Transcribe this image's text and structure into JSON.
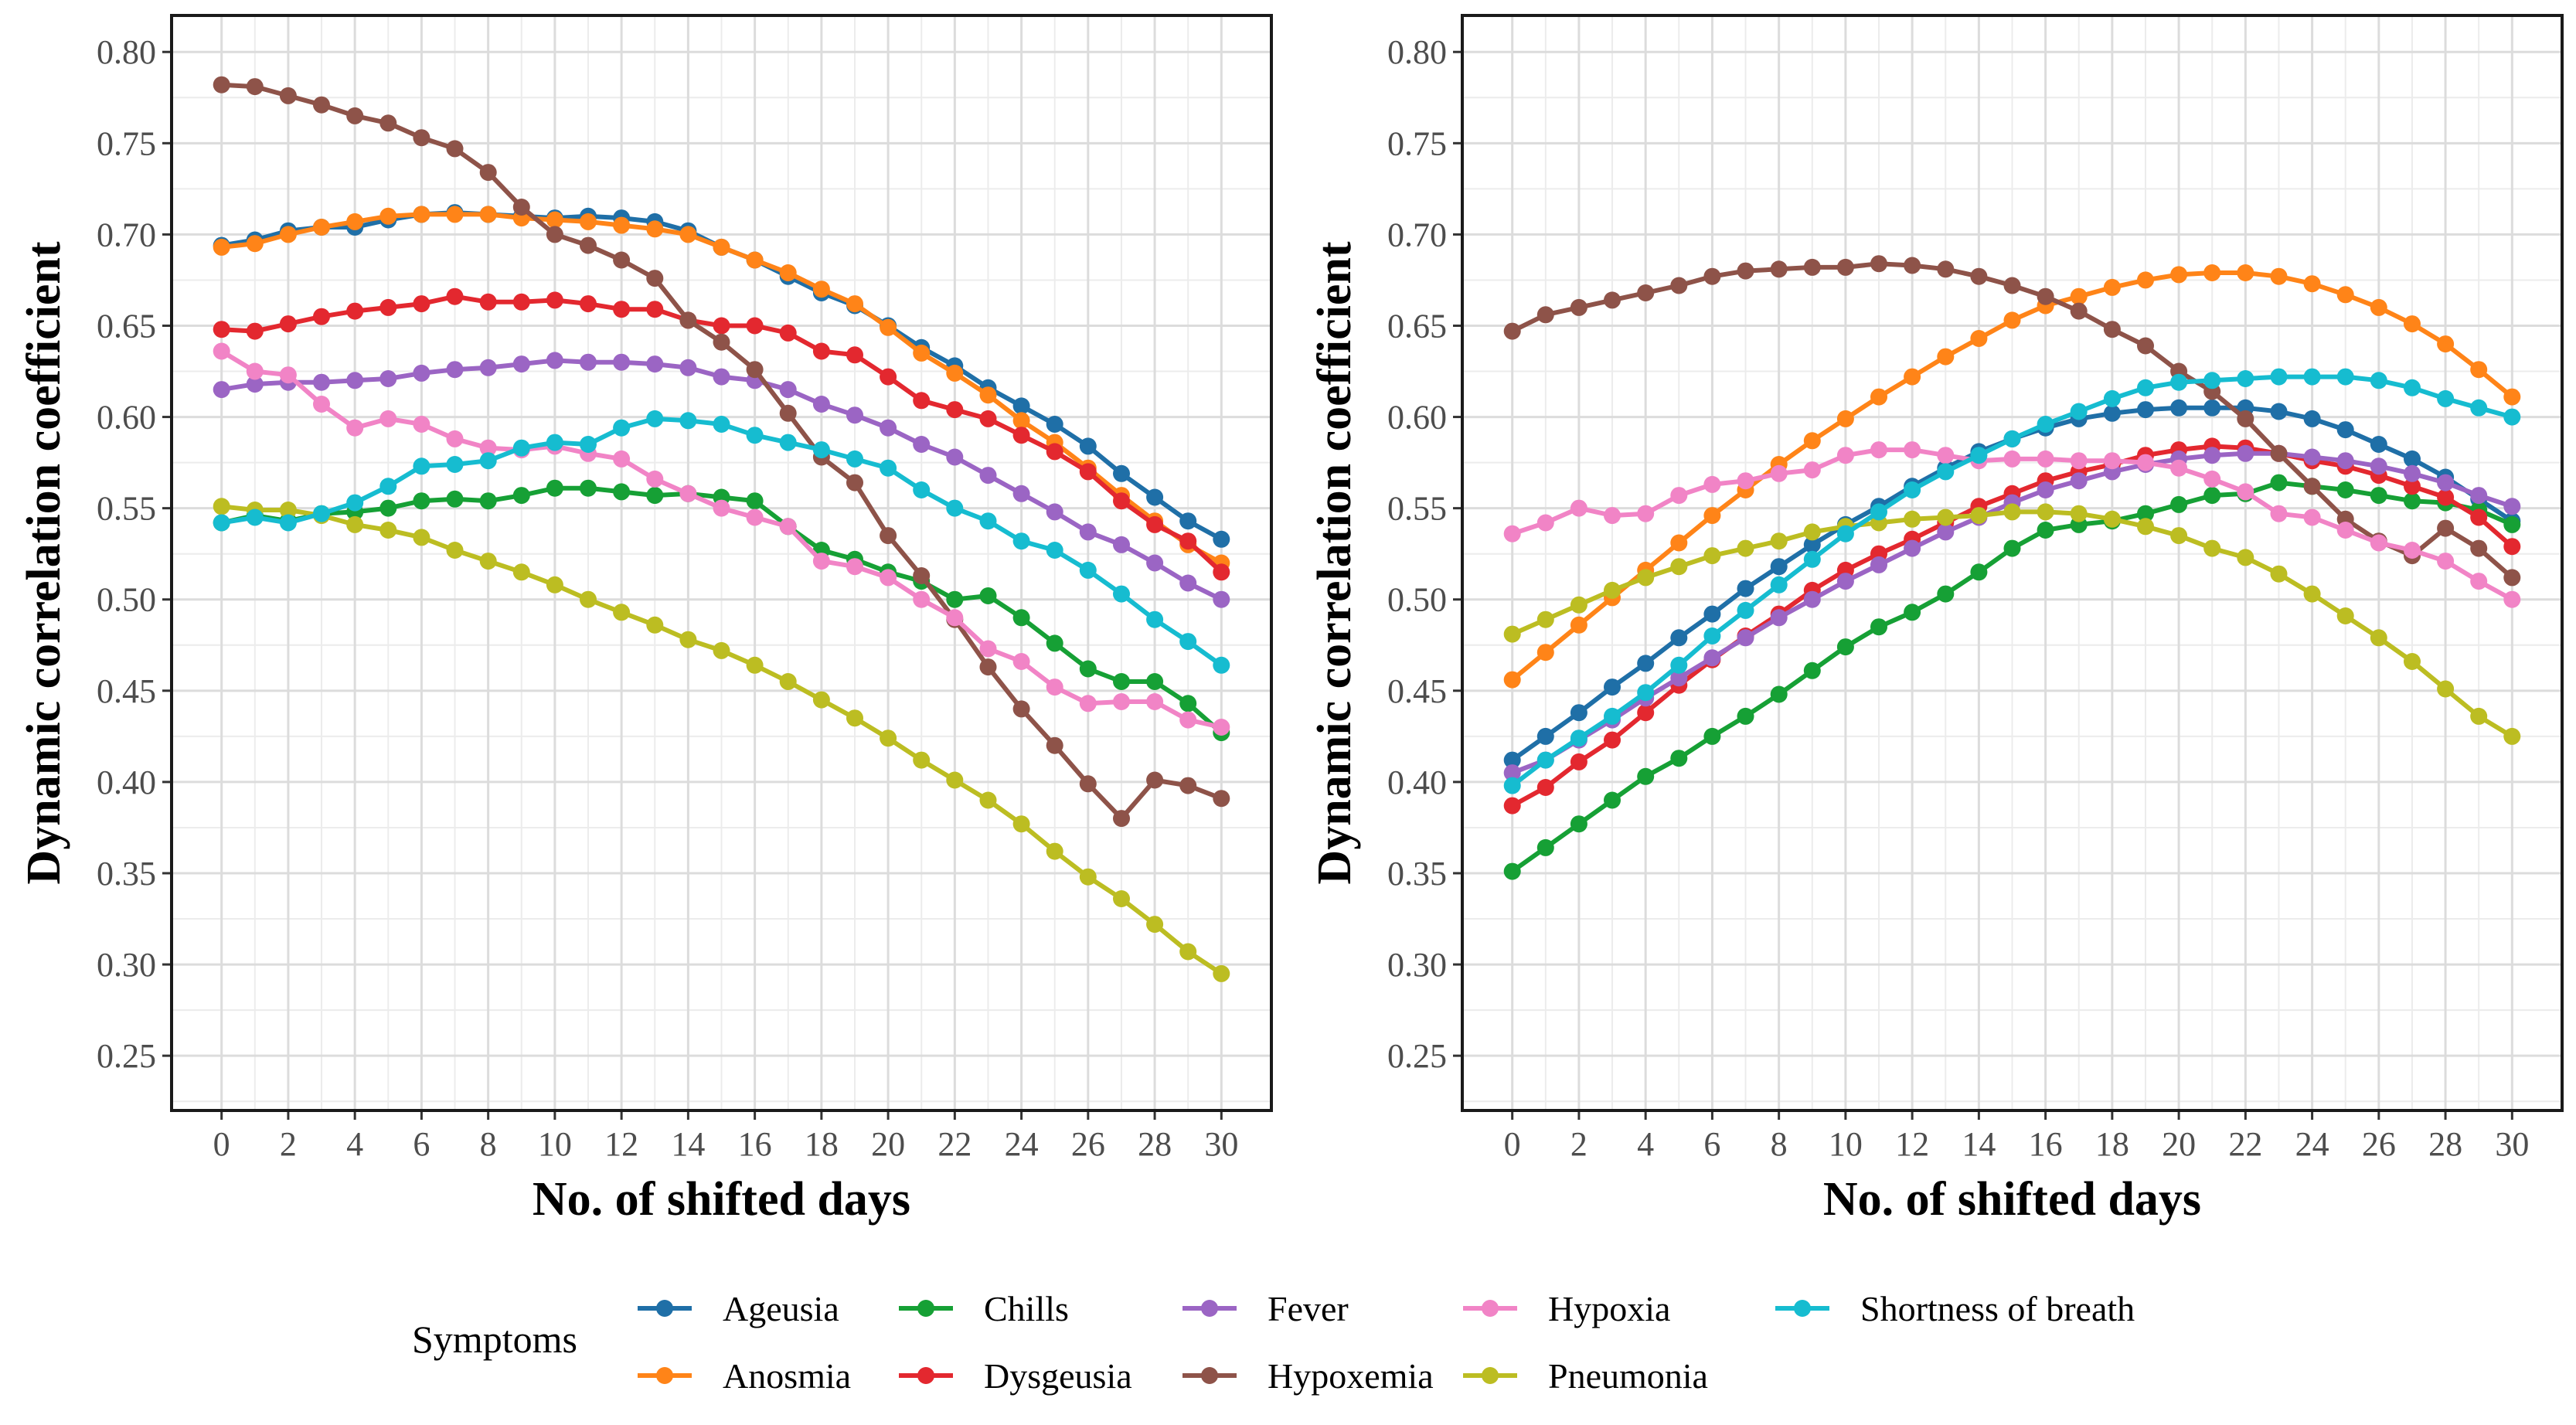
{
  "legend": {
    "title": "Symptoms",
    "items": [
      {
        "label": "Ageusia",
        "color": "#1f6fa7"
      },
      {
        "label": "Chills",
        "color": "#16a035"
      },
      {
        "label": "Fever",
        "color": "#9b65c4"
      },
      {
        "label": "Hypoxia",
        "color": "#f184c6"
      },
      {
        "label": "Shortness of breath",
        "color": "#16bcd0"
      },
      {
        "label": "Anosmia",
        "color": "#ff8418"
      },
      {
        "label": "Dysgeusia",
        "color": "#e3282f"
      },
      {
        "label": "Hypoxemia",
        "color": "#8e5349"
      },
      {
        "label": "Pneumonia",
        "color": "#bcbd22"
      }
    ]
  },
  "chart_data": [
    {
      "type": "line",
      "title": "",
      "xlabel": "No. of shifted days",
      "ylabel": "Dynamic correlation coefficient",
      "xlim": [
        -1.5,
        31.5
      ],
      "ylim": [
        0.22,
        0.82
      ],
      "xticks": [
        "0",
        "2",
        "4",
        "6",
        "8",
        "10",
        "12",
        "14",
        "16",
        "18",
        "20",
        "22",
        "24",
        "26",
        "28",
        "30"
      ],
      "yticks": [
        "0.25",
        "0.30",
        "0.35",
        "0.40",
        "0.45",
        "0.50",
        "0.55",
        "0.60",
        "0.65",
        "0.70",
        "0.75",
        "0.80"
      ],
      "x": [
        0,
        1,
        2,
        3,
        4,
        5,
        6,
        7,
        8,
        9,
        10,
        11,
        12,
        13,
        14,
        15,
        16,
        17,
        18,
        19,
        20,
        21,
        22,
        23,
        24,
        25,
        26,
        27,
        28,
        29,
        30
      ],
      "series": [
        {
          "name": "Ageusia",
          "color": "#1f6fa7",
          "values": [
            0.694,
            0.697,
            0.702,
            0.704,
            0.704,
            0.708,
            0.711,
            0.712,
            0.711,
            0.71,
            0.709,
            0.71,
            0.709,
            0.707,
            0.702,
            0.693,
            0.686,
            0.677,
            0.668,
            0.661,
            0.65,
            0.638,
            0.628,
            0.616,
            0.606,
            0.596,
            0.584,
            0.569,
            0.556,
            0.543,
            0.533
          ]
        },
        {
          "name": "Anosmia",
          "color": "#ff8418",
          "values": [
            0.693,
            0.695,
            0.7,
            0.704,
            0.707,
            0.71,
            0.711,
            0.711,
            0.711,
            0.709,
            0.708,
            0.707,
            0.705,
            0.703,
            0.7,
            0.693,
            0.686,
            0.679,
            0.67,
            0.662,
            0.649,
            0.635,
            0.624,
            0.612,
            0.598,
            0.586,
            0.572,
            0.557,
            0.543,
            0.53,
            0.52
          ]
        },
        {
          "name": "Chills",
          "color": "#16a035",
          "values": [
            0.542,
            0.546,
            0.543,
            0.547,
            0.548,
            0.55,
            0.554,
            0.555,
            0.554,
            0.557,
            0.561,
            0.561,
            0.559,
            0.557,
            0.558,
            0.556,
            0.554,
            0.54,
            0.527,
            0.522,
            0.515,
            0.51,
            0.5,
            0.502,
            0.49,
            0.476,
            0.462,
            0.455,
            0.455,
            0.443,
            0.427
          ]
        },
        {
          "name": "Dysgeusia",
          "color": "#e3282f",
          "values": [
            0.648,
            0.647,
            0.651,
            0.655,
            0.658,
            0.66,
            0.662,
            0.666,
            0.663,
            0.663,
            0.664,
            0.662,
            0.659,
            0.659,
            0.653,
            0.65,
            0.65,
            0.646,
            0.636,
            0.634,
            0.622,
            0.609,
            0.604,
            0.599,
            0.59,
            0.581,
            0.57,
            0.554,
            0.541,
            0.532,
            0.515
          ]
        },
        {
          "name": "Fever",
          "color": "#9b65c4",
          "values": [
            0.615,
            0.618,
            0.619,
            0.619,
            0.62,
            0.621,
            0.624,
            0.626,
            0.627,
            0.629,
            0.631,
            0.63,
            0.63,
            0.629,
            0.627,
            0.622,
            0.62,
            0.615,
            0.607,
            0.601,
            0.594,
            0.585,
            0.578,
            0.568,
            0.558,
            0.548,
            0.537,
            0.53,
            0.52,
            0.509,
            0.5
          ]
        },
        {
          "name": "Hypoxemia",
          "color": "#8e5349",
          "values": [
            0.782,
            0.781,
            0.776,
            0.771,
            0.765,
            0.761,
            0.753,
            0.747,
            0.734,
            0.715,
            0.7,
            0.694,
            0.686,
            0.676,
            0.653,
            0.641,
            0.626,
            0.602,
            0.578,
            0.564,
            0.535,
            0.513,
            0.489,
            0.463,
            0.44,
            0.42,
            0.399,
            0.38,
            0.401,
            0.398,
            0.391
          ]
        },
        {
          "name": "Hypoxia",
          "color": "#f184c6",
          "values": [
            0.636,
            0.625,
            0.623,
            0.607,
            0.594,
            0.599,
            0.596,
            0.588,
            0.583,
            0.582,
            0.584,
            0.58,
            0.577,
            0.566,
            0.558,
            0.55,
            0.545,
            0.54,
            0.521,
            0.518,
            0.512,
            0.5,
            0.49,
            0.473,
            0.466,
            0.452,
            0.443,
            0.444,
            0.444,
            0.434,
            0.43
          ]
        },
        {
          "name": "Pneumonia",
          "color": "#bcbd22",
          "values": [
            0.551,
            0.549,
            0.549,
            0.546,
            0.541,
            0.538,
            0.534,
            0.527,
            0.521,
            0.515,
            0.508,
            0.5,
            0.493,
            0.486,
            0.478,
            0.472,
            0.464,
            0.455,
            0.445,
            0.435,
            0.424,
            0.412,
            0.401,
            0.39,
            0.377,
            0.362,
            0.348,
            0.336,
            0.322,
            0.307,
            0.295
          ]
        },
        {
          "name": "Shortness of breath",
          "color": "#16bcd0",
          "values": [
            0.542,
            0.545,
            0.542,
            0.547,
            0.553,
            0.562,
            0.573,
            0.574,
            0.576,
            0.583,
            0.586,
            0.585,
            0.594,
            0.599,
            0.598,
            0.596,
            0.59,
            0.586,
            0.582,
            0.577,
            0.572,
            0.56,
            0.55,
            0.543,
            0.532,
            0.527,
            0.516,
            0.503,
            0.489,
            0.477,
            0.464
          ]
        }
      ]
    },
    {
      "type": "line",
      "title": "",
      "xlabel": "No. of shifted days",
      "ylabel": "Dynamic correlation coefficient",
      "xlim": [
        -1.5,
        31.5
      ],
      "ylim": [
        0.22,
        0.82
      ],
      "xticks": [
        "0",
        "2",
        "4",
        "6",
        "8",
        "10",
        "12",
        "14",
        "16",
        "18",
        "20",
        "22",
        "24",
        "26",
        "28",
        "30"
      ],
      "yticks": [
        "0.25",
        "0.30",
        "0.35",
        "0.40",
        "0.45",
        "0.50",
        "0.55",
        "0.60",
        "0.65",
        "0.70",
        "0.75",
        "0.80"
      ],
      "x": [
        0,
        1,
        2,
        3,
        4,
        5,
        6,
        7,
        8,
        9,
        10,
        11,
        12,
        13,
        14,
        15,
        16,
        17,
        18,
        19,
        20,
        21,
        22,
        23,
        24,
        25,
        26,
        27,
        28,
        29,
        30
      ],
      "series": [
        {
          "name": "Ageusia",
          "color": "#1f6fa7",
          "values": [
            0.412,
            0.425,
            0.438,
            0.452,
            0.465,
            0.479,
            0.492,
            0.506,
            0.518,
            0.53,
            0.541,
            0.551,
            0.562,
            0.572,
            0.581,
            0.588,
            0.594,
            0.599,
            0.602,
            0.604,
            0.605,
            0.605,
            0.605,
            0.603,
            0.599,
            0.593,
            0.585,
            0.577,
            0.567,
            0.555,
            0.543
          ]
        },
        {
          "name": "Anosmia",
          "color": "#ff8418",
          "values": [
            0.456,
            0.471,
            0.486,
            0.501,
            0.516,
            0.531,
            0.546,
            0.56,
            0.574,
            0.587,
            0.599,
            0.611,
            0.622,
            0.633,
            0.643,
            0.653,
            0.661,
            0.666,
            0.671,
            0.675,
            0.678,
            0.679,
            0.679,
            0.677,
            0.673,
            0.667,
            0.66,
            0.651,
            0.64,
            0.626,
            0.611
          ]
        },
        {
          "name": "Chills",
          "color": "#16a035",
          "values": [
            0.351,
            0.364,
            0.377,
            0.39,
            0.403,
            0.413,
            0.425,
            0.436,
            0.448,
            0.461,
            0.474,
            0.485,
            0.493,
            0.503,
            0.515,
            0.528,
            0.538,
            0.541,
            0.543,
            0.547,
            0.552,
            0.557,
            0.558,
            0.564,
            0.562,
            0.56,
            0.557,
            0.554,
            0.553,
            0.549,
            0.541
          ]
        },
        {
          "name": "Dysgeusia",
          "color": "#e3282f",
          "values": [
            0.387,
            0.397,
            0.411,
            0.423,
            0.438,
            0.453,
            0.467,
            0.48,
            0.492,
            0.505,
            0.516,
            0.525,
            0.533,
            0.542,
            0.551,
            0.558,
            0.565,
            0.57,
            0.574,
            0.579,
            0.582,
            0.584,
            0.583,
            0.58,
            0.576,
            0.573,
            0.568,
            0.562,
            0.556,
            0.545,
            0.529
          ]
        },
        {
          "name": "Fever",
          "color": "#9b65c4",
          "values": [
            0.405,
            0.412,
            0.423,
            0.434,
            0.446,
            0.457,
            0.468,
            0.479,
            0.49,
            0.5,
            0.51,
            0.519,
            0.528,
            0.537,
            0.545,
            0.553,
            0.56,
            0.565,
            0.57,
            0.574,
            0.577,
            0.579,
            0.58,
            0.58,
            0.578,
            0.576,
            0.573,
            0.569,
            0.564,
            0.557,
            0.551
          ]
        },
        {
          "name": "Hypoxemia",
          "color": "#8e5349",
          "values": [
            0.647,
            0.656,
            0.66,
            0.664,
            0.668,
            0.672,
            0.677,
            0.68,
            0.681,
            0.682,
            0.682,
            0.684,
            0.683,
            0.681,
            0.677,
            0.672,
            0.666,
            0.658,
            0.648,
            0.639,
            0.625,
            0.614,
            0.599,
            0.58,
            0.562,
            0.544,
            0.532,
            0.524,
            0.539,
            0.528,
            0.512
          ]
        },
        {
          "name": "Hypoxia",
          "color": "#f184c6",
          "values": [
            0.536,
            0.542,
            0.55,
            0.546,
            0.547,
            0.557,
            0.563,
            0.565,
            0.569,
            0.571,
            0.579,
            0.582,
            0.582,
            0.579,
            0.576,
            0.577,
            0.577,
            0.576,
            0.576,
            0.575,
            0.572,
            0.566,
            0.559,
            0.547,
            0.545,
            0.538,
            0.531,
            0.527,
            0.521,
            0.51,
            0.5
          ]
        },
        {
          "name": "Pneumonia",
          "color": "#bcbd22",
          "values": [
            0.481,
            0.489,
            0.497,
            0.505,
            0.512,
            0.518,
            0.524,
            0.528,
            0.532,
            0.537,
            0.54,
            0.542,
            0.544,
            0.545,
            0.546,
            0.548,
            0.548,
            0.547,
            0.544,
            0.54,
            0.535,
            0.528,
            0.523,
            0.514,
            0.503,
            0.491,
            0.479,
            0.466,
            0.451,
            0.436,
            0.425
          ]
        },
        {
          "name": "Shortness of breath",
          "color": "#16bcd0",
          "values": [
            0.398,
            0.412,
            0.424,
            0.436,
            0.449,
            0.464,
            0.48,
            0.494,
            0.508,
            0.522,
            0.536,
            0.548,
            0.56,
            0.57,
            0.579,
            0.588,
            0.596,
            0.603,
            0.61,
            0.616,
            0.619,
            0.62,
            0.621,
            0.622,
            0.622,
            0.622,
            0.62,
            0.616,
            0.61,
            0.605,
            0.6
          ]
        }
      ]
    }
  ]
}
